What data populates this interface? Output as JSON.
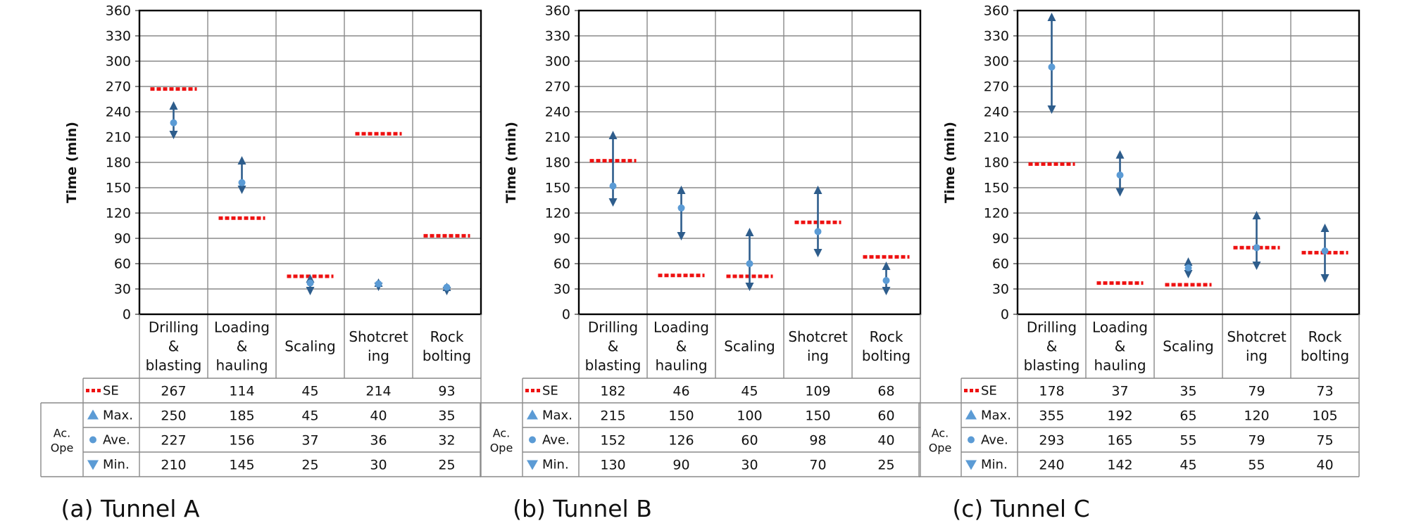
{
  "y_axis_title": "Time (min)",
  "category_labels": [
    [
      "Drilling",
      "&",
      "blasting"
    ],
    [
      "Loading",
      "&",
      "hauling"
    ],
    [
      "Scaling"
    ],
    [
      "Shotcret",
      "ing"
    ],
    [
      "Rock",
      "bolting"
    ]
  ],
  "row_labels": {
    "se": "SE",
    "max": "Max.",
    "ave": "Ave.",
    "min": "Min."
  },
  "group_label": [
    "Ac.",
    "Ope"
  ],
  "colors": {
    "se": "#ee1111",
    "marker": "#5b9bd5",
    "arrow": "#2e5d8c",
    "grid": "#8a8a8a",
    "frame": "#000000"
  },
  "chart_data": [
    {
      "type": "range",
      "title": "(a) Tunnel A",
      "ylabel": "Time (min)",
      "ylim": [
        0,
        360
      ],
      "yticks": [
        0,
        30,
        60,
        90,
        120,
        150,
        180,
        210,
        240,
        270,
        300,
        330,
        360
      ],
      "categories": [
        "Drilling & blasting",
        "Loading & hauling",
        "Scaling",
        "Shotcreting",
        "Rock bolting"
      ],
      "se": [
        267,
        114,
        45,
        214,
        93
      ],
      "max": [
        250,
        185,
        45,
        40,
        35
      ],
      "ave": [
        227,
        156,
        37,
        36,
        32
      ],
      "min": [
        210,
        145,
        25,
        30,
        25
      ]
    },
    {
      "type": "range",
      "title": "(b) Tunnel B",
      "ylabel": "Time (min)",
      "ylim": [
        0,
        360
      ],
      "yticks": [
        0,
        30,
        60,
        90,
        120,
        150,
        180,
        210,
        240,
        270,
        300,
        330,
        360
      ],
      "categories": [
        "Drilling & blasting",
        "Loading & hauling",
        "Scaling",
        "Shotcreting",
        "Rock bolting"
      ],
      "se": [
        182,
        46,
        45,
        109,
        68
      ],
      "max": [
        215,
        150,
        100,
        150,
        60
      ],
      "ave": [
        152,
        126,
        60,
        98,
        40
      ],
      "min": [
        130,
        90,
        30,
        70,
        25
      ]
    },
    {
      "type": "range",
      "title": "(c) Tunnel C",
      "ylabel": "Time (min)",
      "ylim": [
        0,
        360
      ],
      "yticks": [
        0,
        30,
        60,
        90,
        120,
        150,
        180,
        210,
        240,
        270,
        300,
        330,
        360
      ],
      "categories": [
        "Drilling & blasting",
        "Loading & hauling",
        "Scaling",
        "Shotcreting",
        "Rock bolting"
      ],
      "se": [
        178,
        37,
        35,
        79,
        73
      ],
      "max": [
        355,
        192,
        65,
        120,
        105
      ],
      "ave": [
        293,
        165,
        55,
        79,
        75
      ],
      "min": [
        240,
        142,
        45,
        55,
        40
      ]
    }
  ]
}
